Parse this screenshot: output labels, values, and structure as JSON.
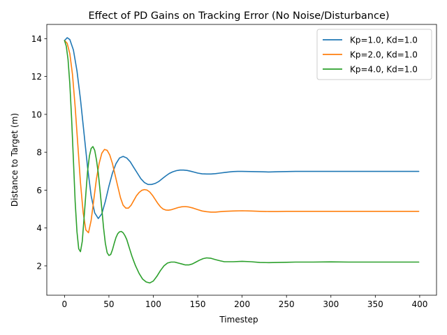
{
  "chart_data": {
    "type": "line",
    "title": "Effect of PD Gains on Tracking Error (No Noise/Disturbance)",
    "xlabel": "Timestep",
    "ylabel": "Distance to Target (m)",
    "xlim": [
      -19.95,
      418.95
    ],
    "ylim": [
      0.45,
      14.75
    ],
    "xticks": [
      0,
      50,
      100,
      150,
      200,
      250,
      300,
      350,
      400
    ],
    "yticks": [
      2,
      4,
      6,
      8,
      10,
      12,
      14
    ],
    "grid": false,
    "legend_position": "top-right",
    "series": [
      {
        "name": "Kp=1.0, Kd=1.0",
        "color": "#1f77b4",
        "x": [
          0,
          3,
          6,
          10,
          14,
          18,
          22,
          26,
          30,
          34,
          38,
          42,
          46,
          50,
          54,
          58,
          62,
          66,
          70,
          74,
          78,
          82,
          86,
          90,
          94,
          98,
          102,
          106,
          110,
          114,
          118,
          122,
          126,
          130,
          134,
          138,
          142,
          146,
          150,
          155,
          160,
          165,
          170,
          175,
          180,
          185,
          190,
          195,
          200,
          210,
          220,
          230,
          240,
          250,
          260,
          270,
          280,
          290,
          300,
          320,
          340,
          360,
          380,
          399
        ],
        "y": [
          13.9,
          14.05,
          13.95,
          13.4,
          12.3,
          10.8,
          9.0,
          7.2,
          5.7,
          4.8,
          4.5,
          4.75,
          5.4,
          6.2,
          6.9,
          7.4,
          7.7,
          7.78,
          7.7,
          7.5,
          7.2,
          6.9,
          6.6,
          6.4,
          6.3,
          6.3,
          6.35,
          6.45,
          6.6,
          6.75,
          6.88,
          6.97,
          7.03,
          7.06,
          7.06,
          7.04,
          7.0,
          6.95,
          6.9,
          6.86,
          6.85,
          6.85,
          6.87,
          6.9,
          6.93,
          6.96,
          6.98,
          6.99,
          6.99,
          6.98,
          6.97,
          6.96,
          6.97,
          6.98,
          6.99,
          6.99,
          6.99,
          6.99,
          6.99,
          6.99,
          6.99,
          6.99,
          6.99,
          6.99
        ]
      },
      {
        "name": "Kp=2.0, Kd=1.0",
        "color": "#ff7f0e",
        "x": [
          0,
          3,
          6,
          9,
          12,
          15,
          18,
          21,
          24,
          27,
          30,
          33,
          36,
          39,
          42,
          45,
          48,
          51,
          54,
          57,
          60,
          63,
          66,
          69,
          72,
          75,
          78,
          81,
          84,
          87,
          90,
          93,
          96,
          99,
          102,
          105,
          108,
          111,
          114,
          117,
          120,
          124,
          128,
          132,
          136,
          140,
          145,
          150,
          155,
          160,
          165,
          170,
          175,
          180,
          190,
          200,
          210,
          220,
          230,
          240,
          250,
          270,
          290,
          320,
          360,
          399
        ],
        "y": [
          13.9,
          13.75,
          13.2,
          12.1,
          10.4,
          8.4,
          6.4,
          4.8,
          3.9,
          3.75,
          4.4,
          5.5,
          6.6,
          7.4,
          7.95,
          8.15,
          8.1,
          7.85,
          7.4,
          6.8,
          6.2,
          5.6,
          5.2,
          5.05,
          5.05,
          5.2,
          5.45,
          5.7,
          5.88,
          5.99,
          6.03,
          6.0,
          5.9,
          5.73,
          5.52,
          5.3,
          5.12,
          5.0,
          4.95,
          4.94,
          4.96,
          5.02,
          5.08,
          5.12,
          5.13,
          5.11,
          5.05,
          4.97,
          4.9,
          4.86,
          4.84,
          4.84,
          4.86,
          4.88,
          4.9,
          4.91,
          4.9,
          4.88,
          4.87,
          4.87,
          4.88,
          4.88,
          4.88,
          4.88,
          4.88,
          4.88
        ]
      },
      {
        "name": "Kp=4.0, Kd=1.0",
        "color": "#2ca02c",
        "x": [
          0,
          2,
          4,
          6,
          8,
          10,
          12,
          14,
          16,
          18,
          20,
          22,
          24,
          26,
          28,
          30,
          32,
          34,
          36,
          38,
          40,
          42,
          44,
          46,
          48,
          50,
          52,
          54,
          56,
          58,
          60,
          62,
          64,
          66,
          68,
          70,
          72,
          74,
          76,
          78,
          80,
          84,
          88,
          92,
          96,
          100,
          104,
          108,
          112,
          116,
          120,
          124,
          128,
          132,
          136,
          140,
          144,
          148,
          152,
          156,
          160,
          165,
          170,
          175,
          180,
          190,
          200,
          210,
          220,
          230,
          240,
          250,
          260,
          270,
          280,
          300,
          320,
          350,
          380,
          399
        ],
        "y": [
          13.9,
          13.6,
          12.9,
          11.6,
          9.8,
          7.6,
          5.4,
          3.8,
          2.9,
          2.75,
          3.3,
          4.5,
          5.8,
          7.0,
          7.8,
          8.2,
          8.3,
          8.1,
          7.6,
          6.9,
          6.0,
          5.0,
          4.0,
          3.2,
          2.7,
          2.55,
          2.6,
          2.85,
          3.2,
          3.5,
          3.7,
          3.8,
          3.82,
          3.75,
          3.6,
          3.4,
          3.1,
          2.8,
          2.5,
          2.25,
          2.0,
          1.6,
          1.3,
          1.15,
          1.1,
          1.2,
          1.45,
          1.75,
          2.0,
          2.15,
          2.2,
          2.2,
          2.15,
          2.1,
          2.05,
          2.05,
          2.1,
          2.2,
          2.3,
          2.38,
          2.42,
          2.4,
          2.33,
          2.27,
          2.22,
          2.22,
          2.24,
          2.22,
          2.18,
          2.17,
          2.18,
          2.19,
          2.2,
          2.2,
          2.2,
          2.21,
          2.2,
          2.2,
          2.2,
          2.2
        ]
      }
    ]
  }
}
